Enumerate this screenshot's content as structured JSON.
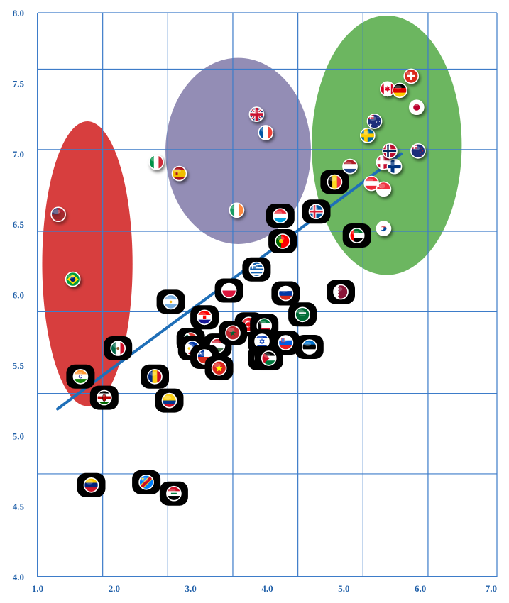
{
  "chart_data": {
    "type": "scatter",
    "title": "",
    "xlabel": "",
    "ylabel": "",
    "xlim": [
      1.0,
      7.0
    ],
    "ylim": [
      4.0,
      8.0
    ],
    "x_ticks": [
      "1.0",
      "2.0",
      "3.0",
      "4.0",
      "5.0",
      "6.0",
      "7.0"
    ],
    "y_ticks": [
      "4.0",
      "4.5",
      "5.0",
      "5.5",
      "6.0",
      "6.5",
      "7.0",
      "7.5",
      "8.0"
    ],
    "grid_x": [
      1.0,
      1.85,
      2.7,
      3.55,
      4.4,
      5.25,
      6.1,
      7.0
    ],
    "grid_y": [
      4.73,
      5.3,
      5.88,
      6.45,
      7.03,
      7.6,
      8.0
    ],
    "grid": true,
    "colors": {
      "grid": "#3d7cc9",
      "tick_text": "#1f5fa8",
      "trend_line": "#1f6fb8",
      "cluster_red": "#d42e2e",
      "cluster_purple": "#8079a8",
      "cluster_green": "#5fb052",
      "marker_shadow": "#000000"
    },
    "clusters": [
      {
        "color": "red",
        "cx": 1.65,
        "cy": 6.22,
        "rx": 0.59,
        "ry": 1.01
      },
      {
        "color": "purple",
        "cx": 3.62,
        "cy": 7.02,
        "rx": 0.95,
        "ry": 0.66
      },
      {
        "color": "green",
        "cx": 5.56,
        "cy": 7.06,
        "rx": 0.98,
        "ry": 0.92
      }
    ],
    "trend": {
      "x1": 1.26,
      "y1": 5.19,
      "x2": 5.75,
      "y2": 7.0
    },
    "points": [
      {
        "country": "USA",
        "flag": "usa",
        "x": 1.27,
        "y": 6.57,
        "badge": false
      },
      {
        "country": "Brazil",
        "flag": "brazil",
        "x": 1.46,
        "y": 6.11,
        "badge": false
      },
      {
        "country": "India",
        "flag": "india",
        "x": 1.56,
        "y": 5.42,
        "badge": true
      },
      {
        "country": "Mexico",
        "flag": "mexico",
        "x": 2.05,
        "y": 5.62,
        "badge": true
      },
      {
        "country": "Kenya",
        "flag": "kenya",
        "x": 1.87,
        "y": 5.27,
        "badge": true
      },
      {
        "country": "Venezuela",
        "flag": "venezuela",
        "x": 1.7,
        "y": 4.65,
        "badge": true
      },
      {
        "country": "DR Congo",
        "flag": "drcongo",
        "x": 2.42,
        "y": 4.67,
        "badge": true
      },
      {
        "country": "Iraq",
        "flag": "iraq",
        "x": 2.78,
        "y": 4.59,
        "badge": true
      },
      {
        "country": "Colombia",
        "flag": "colombia",
        "x": 2.72,
        "y": 5.25,
        "badge": true
      },
      {
        "country": "Romania",
        "flag": "romania",
        "x": 2.53,
        "y": 5.42,
        "badge": true
      },
      {
        "country": "Argentina",
        "flag": "argentina",
        "x": 2.74,
        "y": 5.95,
        "badge": true
      },
      {
        "country": "Italy",
        "flag": "italy",
        "x": 2.55,
        "y": 6.94,
        "badge": false
      },
      {
        "country": "Spain",
        "flag": "spain",
        "x": 2.85,
        "y": 6.86,
        "badge": false
      },
      {
        "country": "United Kingdom",
        "flag": "uk",
        "x": 3.86,
        "y": 7.28,
        "badge": false
      },
      {
        "country": "France",
        "flag": "france",
        "x": 3.98,
        "y": 7.15,
        "badge": false
      },
      {
        "country": "Ireland",
        "flag": "ireland",
        "x": 3.6,
        "y": 6.6,
        "badge": false
      },
      {
        "country": "Greece",
        "flag": "greece",
        "x": 3.86,
        "y": 6.18,
        "badge": true
      },
      {
        "country": "Poland",
        "flag": "poland",
        "x": 3.5,
        "y": 6.03,
        "badge": true
      },
      {
        "country": "Russia",
        "flag": "russia",
        "x": 4.24,
        "y": 6.01,
        "badge": true
      },
      {
        "country": "Portugal",
        "flag": "portugal",
        "x": 4.2,
        "y": 6.38,
        "badge": true
      },
      {
        "country": "Luxembourg",
        "flag": "luxembourg",
        "x": 4.17,
        "y": 6.56,
        "badge": true
      },
      {
        "country": "Iceland",
        "flag": "iceland",
        "x": 4.64,
        "y": 6.59,
        "badge": true
      },
      {
        "country": "Qatar",
        "flag": "qatar",
        "x": 4.96,
        "y": 6.02,
        "badge": true
      },
      {
        "country": "UAE",
        "flag": "uae",
        "x": 5.17,
        "y": 6.42,
        "badge": true
      },
      {
        "country": "Belgium",
        "flag": "belgium",
        "x": 4.88,
        "y": 6.8,
        "badge": true
      },
      {
        "country": "Croatia",
        "flag": "croatia",
        "x": 3.18,
        "y": 5.84,
        "badge": true
      },
      {
        "country": "South Africa",
        "flag": "southafrica",
        "x": 3.0,
        "y": 5.68,
        "badge": true
      },
      {
        "country": "Hungary",
        "flag": "hungary",
        "x": 3.35,
        "y": 5.64,
        "badge": true
      },
      {
        "country": "Turkey",
        "flag": "turkey",
        "x": 3.76,
        "y": 5.79,
        "badge": true
      },
      {
        "country": "Kuwait",
        "flag": "kuwait",
        "x": 3.96,
        "y": 5.78,
        "badge": true
      },
      {
        "country": "Saudi Arabia",
        "flag": "saudi",
        "x": 4.46,
        "y": 5.86,
        "badge": true
      },
      {
        "country": "Morocco",
        "flag": "morocco",
        "x": 3.55,
        "y": 5.73,
        "badge": true
      },
      {
        "country": "Israel",
        "flag": "israel",
        "x": 3.93,
        "y": 5.67,
        "badge": true
      },
      {
        "country": "Slovenia",
        "flag": "slovenia",
        "x": 4.24,
        "y": 5.66,
        "badge": true
      },
      {
        "country": "Estonia",
        "flag": "estonia",
        "x": 4.55,
        "y": 5.63,
        "badge": true
      },
      {
        "country": "Philippines",
        "flag": "philippines",
        "x": 3.02,
        "y": 5.62,
        "badge": true
      },
      {
        "country": "Chile",
        "flag": "chile",
        "x": 3.18,
        "y": 5.56,
        "badge": true
      },
      {
        "country": "China",
        "flag": "china",
        "x": 3.93,
        "y": 5.55,
        "badge": true
      },
      {
        "country": "Jordan",
        "flag": "jordan",
        "x": 4.02,
        "y": 5.55,
        "badge": true
      },
      {
        "country": "Vietnam",
        "flag": "vietnam",
        "x": 3.37,
        "y": 5.48,
        "badge": true
      },
      {
        "country": "Netherlands",
        "flag": "netherlands",
        "x": 5.08,
        "y": 6.91,
        "badge": false
      },
      {
        "country": "Austria",
        "flag": "austria",
        "x": 5.36,
        "y": 6.79,
        "badge": false
      },
      {
        "country": "Singapore",
        "flag": "singapore",
        "x": 5.52,
        "y": 6.75,
        "badge": false
      },
      {
        "country": "South Korea",
        "flag": "southkorea",
        "x": 5.52,
        "y": 6.47,
        "badge": false
      },
      {
        "country": "Denmark",
        "flag": "denmark",
        "x": 5.52,
        "y": 6.94,
        "badge": false
      },
      {
        "country": "Finland",
        "flag": "finland",
        "x": 5.66,
        "y": 6.91,
        "badge": false
      },
      {
        "country": "Norway",
        "flag": "norway",
        "x": 5.6,
        "y": 7.02,
        "badge": false
      },
      {
        "country": "New Zealand",
        "flag": "newzealand",
        "x": 5.97,
        "y": 7.02,
        "badge": false
      },
      {
        "country": "Sweden",
        "flag": "sweden",
        "x": 5.31,
        "y": 7.13,
        "badge": false
      },
      {
        "country": "Australia",
        "flag": "australia",
        "x": 5.4,
        "y": 7.23,
        "badge": false
      },
      {
        "country": "Canada",
        "flag": "canada",
        "x": 5.57,
        "y": 7.46,
        "badge": false
      },
      {
        "country": "Germany",
        "flag": "germany",
        "x": 5.73,
        "y": 7.45,
        "badge": false
      },
      {
        "country": "Switzerland",
        "flag": "switzerland",
        "x": 5.88,
        "y": 7.55,
        "badge": false
      },
      {
        "country": "Japan",
        "flag": "japan",
        "x": 5.95,
        "y": 7.33,
        "badge": false
      }
    ]
  }
}
